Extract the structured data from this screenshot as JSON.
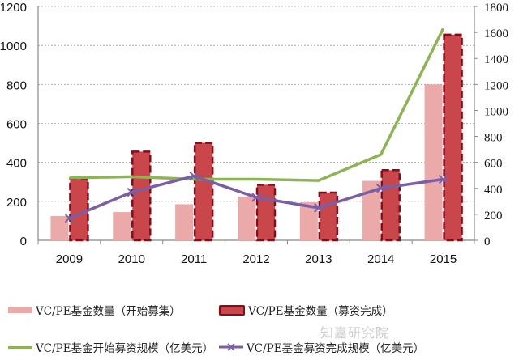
{
  "chart_data": {
    "type": "bar",
    "categories": [
      "2009",
      "2010",
      "2011",
      "2012",
      "2013",
      "2014",
      "2015"
    ],
    "series": [
      {
        "name": "VC/PE基金数量（开始募集）",
        "kind": "bar",
        "axis": "left",
        "color": "#eba9a9",
        "values": [
          125,
          145,
          185,
          225,
          195,
          305,
          800
        ]
      },
      {
        "name": "VC/PE基金数量（募资完成）",
        "kind": "bar",
        "axis": "left",
        "color": "#c9474b",
        "border": "#8b0a1a",
        "values": [
          315,
          455,
          500,
          285,
          245,
          360,
          1055
        ]
      },
      {
        "name": "VC/PE基金开始募资规模（亿美元）",
        "kind": "line",
        "axis": "right",
        "color": "#8db452",
        "values": [
          480,
          490,
          470,
          470,
          460,
          660,
          1630
        ]
      },
      {
        "name": "VC/PE基金募资完成规模（亿美元）",
        "kind": "line",
        "axis": "right",
        "color": "#7b5fa6",
        "marker": "x",
        "values": [
          170,
          370,
          495,
          330,
          250,
          400,
          470
        ]
      }
    ],
    "left_axis": {
      "ylim": [
        0,
        1200
      ],
      "ticks": [
        0,
        200,
        400,
        600,
        800,
        1000,
        1200
      ]
    },
    "right_axis": {
      "ylim": [
        0,
        1800
      ],
      "ticks": [
        0,
        200,
        400,
        600,
        800,
        1000,
        1200,
        1400,
        1600,
        1800
      ]
    },
    "grid": true,
    "legend_position": "bottom",
    "title": "",
    "xlabel": "",
    "ylabel": ""
  },
  "legend": {
    "items": [
      {
        "label": "VC/PE基金数量（开始募集）"
      },
      {
        "label": "VC/PE基金数量（募资完成）"
      },
      {
        "label": "VC/PE基金开始募资规模（亿美元）"
      },
      {
        "label": "VC/PE基金募资完成规模（亿美元）"
      }
    ]
  },
  "watermark": "知嘉研究院"
}
